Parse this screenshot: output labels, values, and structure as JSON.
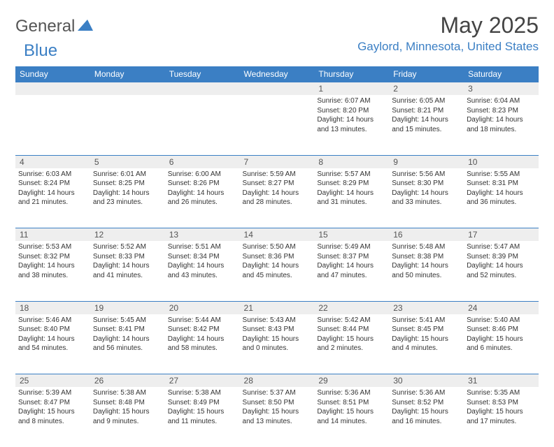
{
  "logo": {
    "part1": "General",
    "part2": "Blue"
  },
  "title": "May 2025",
  "location": "Gaylord, Minnesota, United States",
  "header_color": "#3b7fc4",
  "daynum_bg": "#eeeeee",
  "days": [
    "Sunday",
    "Monday",
    "Tuesday",
    "Wednesday",
    "Thursday",
    "Friday",
    "Saturday"
  ],
  "weeks": [
    {
      "nums": [
        "",
        "",
        "",
        "",
        "1",
        "2",
        "3"
      ],
      "cells": [
        null,
        null,
        null,
        null,
        {
          "sunrise": "6:07 AM",
          "sunset": "8:20 PM",
          "dl1": "Daylight: 14 hours",
          "dl2": "and 13 minutes."
        },
        {
          "sunrise": "6:05 AM",
          "sunset": "8:21 PM",
          "dl1": "Daylight: 14 hours",
          "dl2": "and 15 minutes."
        },
        {
          "sunrise": "6:04 AM",
          "sunset": "8:23 PM",
          "dl1": "Daylight: 14 hours",
          "dl2": "and 18 minutes."
        }
      ]
    },
    {
      "nums": [
        "4",
        "5",
        "6",
        "7",
        "8",
        "9",
        "10"
      ],
      "cells": [
        {
          "sunrise": "6:03 AM",
          "sunset": "8:24 PM",
          "dl1": "Daylight: 14 hours",
          "dl2": "and 21 minutes."
        },
        {
          "sunrise": "6:01 AM",
          "sunset": "8:25 PM",
          "dl1": "Daylight: 14 hours",
          "dl2": "and 23 minutes."
        },
        {
          "sunrise": "6:00 AM",
          "sunset": "8:26 PM",
          "dl1": "Daylight: 14 hours",
          "dl2": "and 26 minutes."
        },
        {
          "sunrise": "5:59 AM",
          "sunset": "8:27 PM",
          "dl1": "Daylight: 14 hours",
          "dl2": "and 28 minutes."
        },
        {
          "sunrise": "5:57 AM",
          "sunset": "8:29 PM",
          "dl1": "Daylight: 14 hours",
          "dl2": "and 31 minutes."
        },
        {
          "sunrise": "5:56 AM",
          "sunset": "8:30 PM",
          "dl1": "Daylight: 14 hours",
          "dl2": "and 33 minutes."
        },
        {
          "sunrise": "5:55 AM",
          "sunset": "8:31 PM",
          "dl1": "Daylight: 14 hours",
          "dl2": "and 36 minutes."
        }
      ]
    },
    {
      "nums": [
        "11",
        "12",
        "13",
        "14",
        "15",
        "16",
        "17"
      ],
      "cells": [
        {
          "sunrise": "5:53 AM",
          "sunset": "8:32 PM",
          "dl1": "Daylight: 14 hours",
          "dl2": "and 38 minutes."
        },
        {
          "sunrise": "5:52 AM",
          "sunset": "8:33 PM",
          "dl1": "Daylight: 14 hours",
          "dl2": "and 41 minutes."
        },
        {
          "sunrise": "5:51 AM",
          "sunset": "8:34 PM",
          "dl1": "Daylight: 14 hours",
          "dl2": "and 43 minutes."
        },
        {
          "sunrise": "5:50 AM",
          "sunset": "8:36 PM",
          "dl1": "Daylight: 14 hours",
          "dl2": "and 45 minutes."
        },
        {
          "sunrise": "5:49 AM",
          "sunset": "8:37 PM",
          "dl1": "Daylight: 14 hours",
          "dl2": "and 47 minutes."
        },
        {
          "sunrise": "5:48 AM",
          "sunset": "8:38 PM",
          "dl1": "Daylight: 14 hours",
          "dl2": "and 50 minutes."
        },
        {
          "sunrise": "5:47 AM",
          "sunset": "8:39 PM",
          "dl1": "Daylight: 14 hours",
          "dl2": "and 52 minutes."
        }
      ]
    },
    {
      "nums": [
        "18",
        "19",
        "20",
        "21",
        "22",
        "23",
        "24"
      ],
      "cells": [
        {
          "sunrise": "5:46 AM",
          "sunset": "8:40 PM",
          "dl1": "Daylight: 14 hours",
          "dl2": "and 54 minutes."
        },
        {
          "sunrise": "5:45 AM",
          "sunset": "8:41 PM",
          "dl1": "Daylight: 14 hours",
          "dl2": "and 56 minutes."
        },
        {
          "sunrise": "5:44 AM",
          "sunset": "8:42 PM",
          "dl1": "Daylight: 14 hours",
          "dl2": "and 58 minutes."
        },
        {
          "sunrise": "5:43 AM",
          "sunset": "8:43 PM",
          "dl1": "Daylight: 15 hours",
          "dl2": "and 0 minutes."
        },
        {
          "sunrise": "5:42 AM",
          "sunset": "8:44 PM",
          "dl1": "Daylight: 15 hours",
          "dl2": "and 2 minutes."
        },
        {
          "sunrise": "5:41 AM",
          "sunset": "8:45 PM",
          "dl1": "Daylight: 15 hours",
          "dl2": "and 4 minutes."
        },
        {
          "sunrise": "5:40 AM",
          "sunset": "8:46 PM",
          "dl1": "Daylight: 15 hours",
          "dl2": "and 6 minutes."
        }
      ]
    },
    {
      "nums": [
        "25",
        "26",
        "27",
        "28",
        "29",
        "30",
        "31"
      ],
      "cells": [
        {
          "sunrise": "5:39 AM",
          "sunset": "8:47 PM",
          "dl1": "Daylight: 15 hours",
          "dl2": "and 8 minutes."
        },
        {
          "sunrise": "5:38 AM",
          "sunset": "8:48 PM",
          "dl1": "Daylight: 15 hours",
          "dl2": "and 9 minutes."
        },
        {
          "sunrise": "5:38 AM",
          "sunset": "8:49 PM",
          "dl1": "Daylight: 15 hours",
          "dl2": "and 11 minutes."
        },
        {
          "sunrise": "5:37 AM",
          "sunset": "8:50 PM",
          "dl1": "Daylight: 15 hours",
          "dl2": "and 13 minutes."
        },
        {
          "sunrise": "5:36 AM",
          "sunset": "8:51 PM",
          "dl1": "Daylight: 15 hours",
          "dl2": "and 14 minutes."
        },
        {
          "sunrise": "5:36 AM",
          "sunset": "8:52 PM",
          "dl1": "Daylight: 15 hours",
          "dl2": "and 16 minutes."
        },
        {
          "sunrise": "5:35 AM",
          "sunset": "8:53 PM",
          "dl1": "Daylight: 15 hours",
          "dl2": "and 17 minutes."
        }
      ]
    }
  ]
}
